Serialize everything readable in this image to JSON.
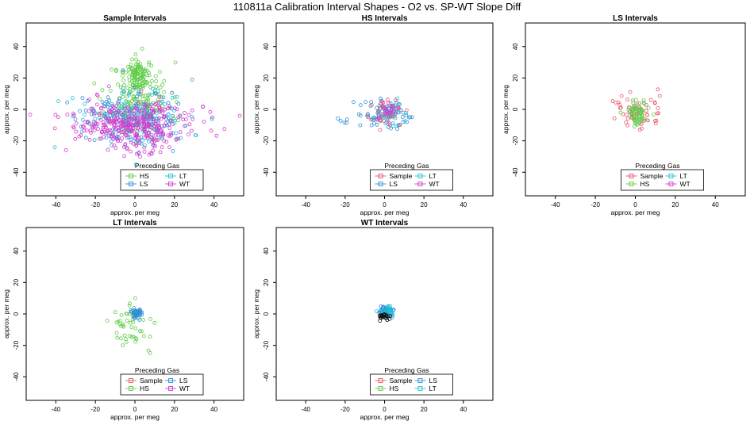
{
  "main_title": "110811a   Calibration Interval Shapes - O2 vs. SP-WT Slope Diff",
  "colors": {
    "Sample": "#e8556a",
    "HS": "#5ccc45",
    "LS": "#2e8fd6",
    "LT": "#22c2d8",
    "WT": "#d13ccf",
    "Black": "#111111"
  },
  "chart_data": [
    {
      "type": "scatter",
      "title": "Sample Intervals",
      "xlabel": "approx. per meg",
      "ylabel": "approx. per meg",
      "xlim": [
        -55,
        55
      ],
      "ylim": [
        -55,
        55
      ],
      "xticks": [
        "-40",
        "-20",
        "0",
        "20",
        "40"
      ],
      "yticks": [
        "-40",
        "-20",
        "0",
        "20",
        "40"
      ],
      "legend": {
        "title": "Preceding Gas",
        "entries": [
          [
            "HS",
            "LT"
          ],
          [
            "LS",
            "WT"
          ]
        ],
        "position": "bottom-center"
      },
      "series": [
        {
          "name": "HS",
          "n": 160,
          "cx": 2,
          "cy": 6,
          "sx": 8,
          "sy": 12,
          "seed": 11
        },
        {
          "name": "HS",
          "n": 90,
          "cx": 2,
          "cy": 22,
          "sx": 3,
          "sy": 5,
          "seed": 12
        },
        {
          "name": "LS",
          "n": 150,
          "cx": -2,
          "cy": -5,
          "sx": 14,
          "sy": 9,
          "seed": 13
        },
        {
          "name": "LT",
          "n": 120,
          "cx": 2,
          "cy": -6,
          "sx": 14,
          "sy": 9,
          "seed": 14
        },
        {
          "name": "WT",
          "n": 280,
          "cx": -1,
          "cy": -9,
          "sx": 12,
          "sy": 8,
          "seed": 15
        },
        {
          "name": "WT",
          "n": 90,
          "cx": 2,
          "cy": -9,
          "sx": 20,
          "sy": 6,
          "seed": 16
        }
      ]
    },
    {
      "type": "scatter",
      "title": "HS Intervals",
      "xlabel": "approx. per meg",
      "ylabel": "approx. per meg",
      "xlim": [
        -55,
        55
      ],
      "ylim": [
        -55,
        55
      ],
      "xticks": [
        "-40",
        "-20",
        "0",
        "20",
        "40"
      ],
      "yticks": [
        "-40",
        "-20",
        "0",
        "20",
        "40"
      ],
      "legend": {
        "title": "Preceding Gas",
        "entries": [
          [
            "Sample",
            "LT"
          ],
          [
            "LS",
            "WT"
          ]
        ],
        "position": "bottom-center"
      },
      "series": [
        {
          "name": "LS",
          "n": 75,
          "cx": 1,
          "cy": -4,
          "sx": 8,
          "sy": 5,
          "seed": 21
        },
        {
          "name": "LT",
          "n": 35,
          "cx": 2,
          "cy": -3,
          "sx": 4,
          "sy": 4,
          "seed": 22
        },
        {
          "name": "Sample",
          "n": 30,
          "cx": 2,
          "cy": -3,
          "sx": 4,
          "sy": 4,
          "seed": 23
        },
        {
          "name": "WT",
          "n": 25,
          "cx": 1,
          "cy": -2,
          "sx": 3,
          "sy": 3,
          "seed": 24
        }
      ]
    },
    {
      "type": "scatter",
      "title": "LS Intervals",
      "xlabel": "approx. per meg",
      "ylabel": "approx. per meg",
      "xlim": [
        -55,
        55
      ],
      "ylim": [
        -55,
        55
      ],
      "xticks": [
        "-40",
        "-20",
        "0",
        "20",
        "40"
      ],
      "yticks": [
        "-40",
        "-20",
        "0",
        "20",
        "40"
      ],
      "legend": {
        "title": "Preceding Gas",
        "entries": [
          [
            "Sample",
            "LT"
          ],
          [
            "HS",
            "WT"
          ]
        ],
        "position": "bottom-center"
      },
      "series": [
        {
          "name": "Sample",
          "n": 55,
          "cx": 0,
          "cy": -2,
          "sx": 7,
          "sy": 6,
          "seed": 31
        },
        {
          "name": "HS",
          "n": 60,
          "cx": 1,
          "cy": -2,
          "sx": 3,
          "sy": 4,
          "seed": 32
        }
      ]
    },
    {
      "type": "scatter",
      "title": "LT Intervals",
      "xlabel": "approx. per meg",
      "ylabel": "approx. per meg",
      "xlim": [
        -55,
        55
      ],
      "ylim": [
        -55,
        55
      ],
      "xticks": [
        "-40",
        "-20",
        "0",
        "20",
        "40"
      ],
      "yticks": [
        "-40",
        "-20",
        "0",
        "20",
        "40"
      ],
      "legend": {
        "title": "Preceding Gas",
        "entries": [
          [
            "Sample",
            "LS"
          ],
          [
            "HS",
            "WT"
          ]
        ],
        "position": "bottom-center"
      },
      "series": [
        {
          "name": "HS",
          "n": 55,
          "cx": 0,
          "cy": -7,
          "sx": 6,
          "sy": 7,
          "seed": 41
        },
        {
          "name": "LS",
          "n": 40,
          "cx": 0.5,
          "cy": 0.5,
          "sx": 1.6,
          "sy": 1.6,
          "seed": 42
        }
      ]
    },
    {
      "type": "scatter",
      "title": "WT Intervals",
      "xlabel": "approx. per meg",
      "ylabel": "approx. per meg",
      "xlim": [
        -55,
        55
      ],
      "ylim": [
        -55,
        55
      ],
      "xticks": [
        "-40",
        "-20",
        "0",
        "20",
        "40"
      ],
      "yticks": [
        "-40",
        "-20",
        "0",
        "20",
        "40"
      ],
      "legend": {
        "title": "Preceding Gas",
        "entries": [
          [
            "Sample",
            "LS"
          ],
          [
            "HS",
            "LT"
          ]
        ],
        "position": "bottom-center"
      },
      "series": [
        {
          "name": "LS",
          "n": 50,
          "cx": 0.5,
          "cy": 1.5,
          "sx": 2.2,
          "sy": 1.8,
          "seed": 51
        },
        {
          "name": "LT",
          "n": 20,
          "cx": 1,
          "cy": 2,
          "sx": 2,
          "sy": 1.8,
          "seed": 52
        },
        {
          "name": "Black",
          "n": 25,
          "cx": 0,
          "cy": -1.5,
          "sx": 1.8,
          "sy": 1.2,
          "seed": 53
        }
      ]
    }
  ]
}
